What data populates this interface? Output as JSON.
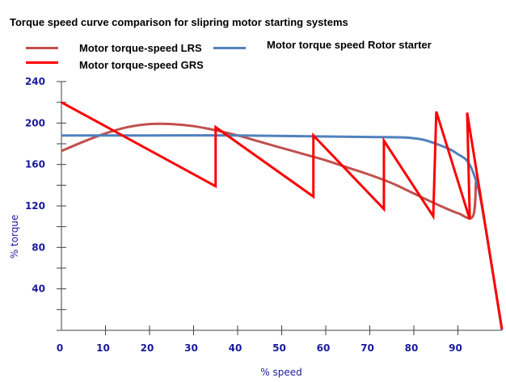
{
  "chart_data": {
    "type": "line",
    "title": "Torque speed curve comparison for  slipring motor starting systems",
    "xlabel": "% speed",
    "ylabel": "% torque",
    "xlim": [
      0,
      100
    ],
    "ylim": [
      0,
      240
    ],
    "x_ticks": [
      0,
      10,
      20,
      30,
      40,
      50,
      60,
      70,
      80,
      90
    ],
    "y_ticks": [
      0,
      20,
      40,
      60,
      80,
      100,
      120,
      140,
      160,
      180,
      200,
      220,
      240
    ],
    "y_tick_labels": [
      "",
      "",
      "40",
      "",
      "80",
      "",
      "120",
      "",
      "160",
      "",
      "200",
      "",
      "240"
    ],
    "grid": false,
    "legend_position": "top",
    "series": [
      {
        "name": "Motor torque-speed LRS",
        "color": "#c0504d",
        "smooth": true,
        "points": [
          [
            0,
            173
          ],
          [
            5,
            182
          ],
          [
            10,
            190
          ],
          [
            15,
            196
          ],
          [
            20,
            199
          ],
          [
            25,
            199
          ],
          [
            30,
            197
          ],
          [
            35,
            193
          ],
          [
            40,
            188
          ],
          [
            45,
            182
          ],
          [
            50,
            176
          ],
          [
            55,
            170
          ],
          [
            60,
            164
          ],
          [
            65,
            157
          ],
          [
            70,
            150
          ],
          [
            75,
            142
          ],
          [
            80,
            132
          ],
          [
            85,
            122
          ],
          [
            90,
            113
          ],
          [
            93.4,
            110
          ],
          [
            94.1,
            144
          ]
        ]
      },
      {
        "name": "Motor torque-speed GRS",
        "color": "#ff0000",
        "smooth": false,
        "points": [
          [
            0,
            220
          ],
          [
            35,
            139
          ],
          [
            35,
            196
          ],
          [
            57.2,
            129
          ],
          [
            57.2,
            188
          ],
          [
            73.2,
            117
          ],
          [
            73.2,
            183
          ],
          [
            84.4,
            110
          ],
          [
            85.1,
            211
          ],
          [
            92.7,
            107
          ],
          [
            92.1,
            210
          ],
          [
            100,
            1
          ]
        ]
      },
      {
        "name": "Motor torque speed Rotor starter",
        "color": "#4f81bd",
        "smooth": true,
        "points": [
          [
            0,
            188
          ],
          [
            20,
            188
          ],
          [
            40,
            188
          ],
          [
            60,
            187
          ],
          [
            70,
            186.5
          ],
          [
            78,
            186
          ],
          [
            82,
            184
          ],
          [
            85,
            180
          ],
          [
            88,
            175
          ],
          [
            90,
            170
          ],
          [
            92,
            164
          ],
          [
            93.5,
            152
          ],
          [
            95,
            130
          ],
          [
            97,
            80
          ],
          [
            100,
            0
          ]
        ]
      }
    ]
  }
}
